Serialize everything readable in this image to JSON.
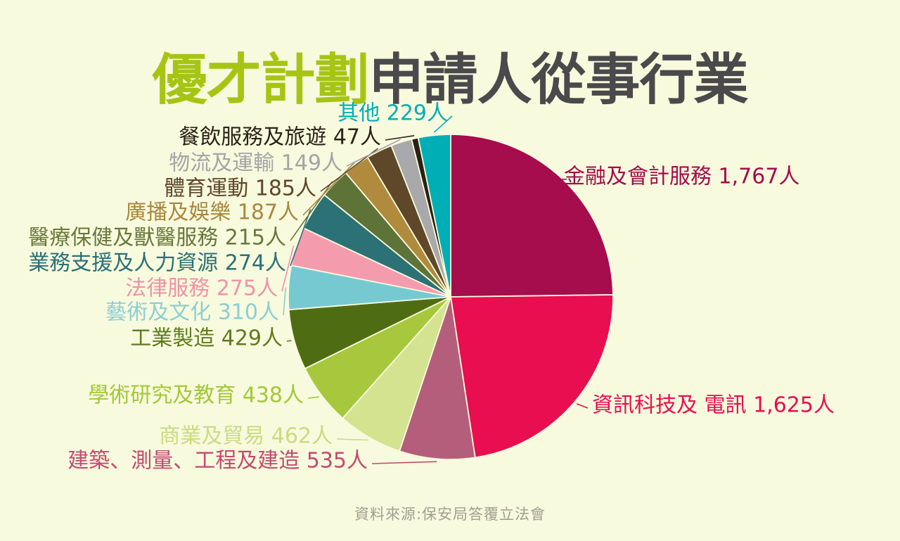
{
  "title": {
    "highlight": "優才計劃",
    "rest": "申請人從事行業"
  },
  "footer": {
    "source": "資料來源:保安局答覆立法會"
  },
  "colors": {
    "background": "#f8fade",
    "title_highlight": "#a6c513",
    "title_rest": "#4a4a4c",
    "footer_text": "#9f9f92"
  },
  "chart_data": {
    "type": "pie",
    "title": "優才計劃申請人從事行業",
    "unit": "人",
    "order": "clockwise-from-top",
    "legend_position": "callout-labels",
    "slices": [
      {
        "name": "金融及會計服務",
        "value": 1767,
        "count_text": "1,767人",
        "color": "#a50d4d",
        "label_color": "#a30c4a"
      },
      {
        "name": "資訊科技及 電訊",
        "value": 1625,
        "count_text": "1,625人",
        "color": "#e80e4f",
        "label_color": "#e80e4f"
      },
      {
        "name": "建築、測量、工程及建造",
        "value": 535,
        "count_text": "535人",
        "color": "#b55e7c",
        "label_color": "#c34a6e"
      },
      {
        "name": "商業及貿易",
        "value": 462,
        "count_text": "462人",
        "color": "#d3e390",
        "label_color": "#c9dc80"
      },
      {
        "name": "學術研究及教育",
        "value": 438,
        "count_text": "438人",
        "color": "#a7c83c",
        "label_color": "#a3c838"
      },
      {
        "name": "工業製造",
        "value": 429,
        "count_text": "429人",
        "color": "#4e6d12",
        "label_color": "#5e7c1c"
      },
      {
        "name": "藝術及文化",
        "value": 310,
        "count_text": "310人",
        "color": "#76c9d1",
        "label_color": "#8cced4"
      },
      {
        "name": "法律服務",
        "value": 275,
        "count_text": "275人",
        "color": "#f49cad",
        "label_color": "#ef93a6"
      },
      {
        "name": "業務支援及人力資源",
        "value": 274,
        "count_text": "274人",
        "color": "#2c7175",
        "label_color": "#2b7076"
      },
      {
        "name": "醫療保健及獸醫服務",
        "value": 215,
        "count_text": "215人",
        "color": "#5d7338",
        "label_color": "#68793c"
      },
      {
        "name": "廣播及娛樂",
        "value": 187,
        "count_text": "187人",
        "color": "#b08b3e",
        "label_color": "#a8883f"
      },
      {
        "name": "體育運動",
        "value": 185,
        "count_text": "185人",
        "color": "#5f472a",
        "label_color": "#5f472a"
      },
      {
        "name": "物流及運輸",
        "value": 149,
        "count_text": "149人",
        "color": "#a9a9ab",
        "label_color": "#a4a4a6"
      },
      {
        "name": "餐飲服務及旅遊",
        "value": 47,
        "count_text": "47人",
        "color": "#2a2014",
        "label_color": "#2b2318"
      },
      {
        "name": "其他",
        "value": 229,
        "count_text": "229人",
        "color": "#00aeb6",
        "label_color": "#00aeb6"
      }
    ]
  }
}
